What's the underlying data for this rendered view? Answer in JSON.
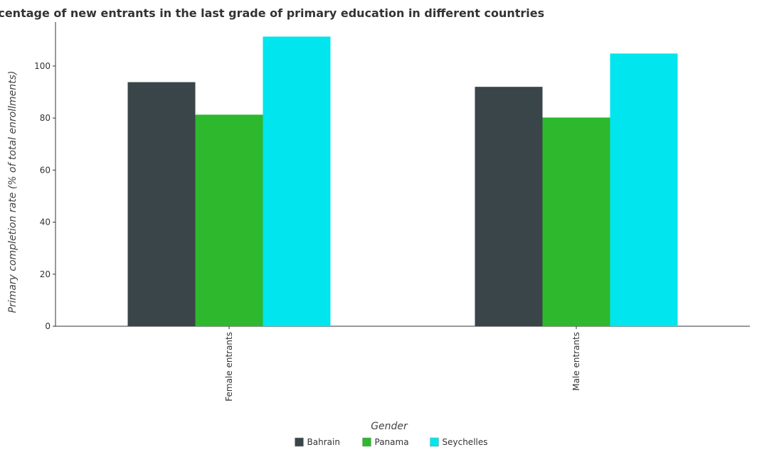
{
  "chart_data": {
    "type": "bar",
    "title": "Percentage of new entrants in the last grade of primary education in different countries",
    "xlabel": "Gender",
    "ylabel": "Primary completion rate (% of total enrollments)",
    "categories": [
      "Female entrants",
      "Male entrants"
    ],
    "series": [
      {
        "name": "Bahrain",
        "color": "#3a4549",
        "values": [
          93.8,
          92.0
        ]
      },
      {
        "name": "Panama",
        "color": "#2db82d",
        "values": [
          81.3,
          80.2
        ]
      },
      {
        "name": "Seychelles",
        "color": "#00e5ee",
        "values": [
          111.3,
          104.8
        ]
      }
    ],
    "yticks": [
      0,
      20,
      40,
      60,
      80,
      100
    ],
    "ylim": [
      0,
      116.9
    ],
    "grid": false,
    "legend_position": "bottom"
  }
}
